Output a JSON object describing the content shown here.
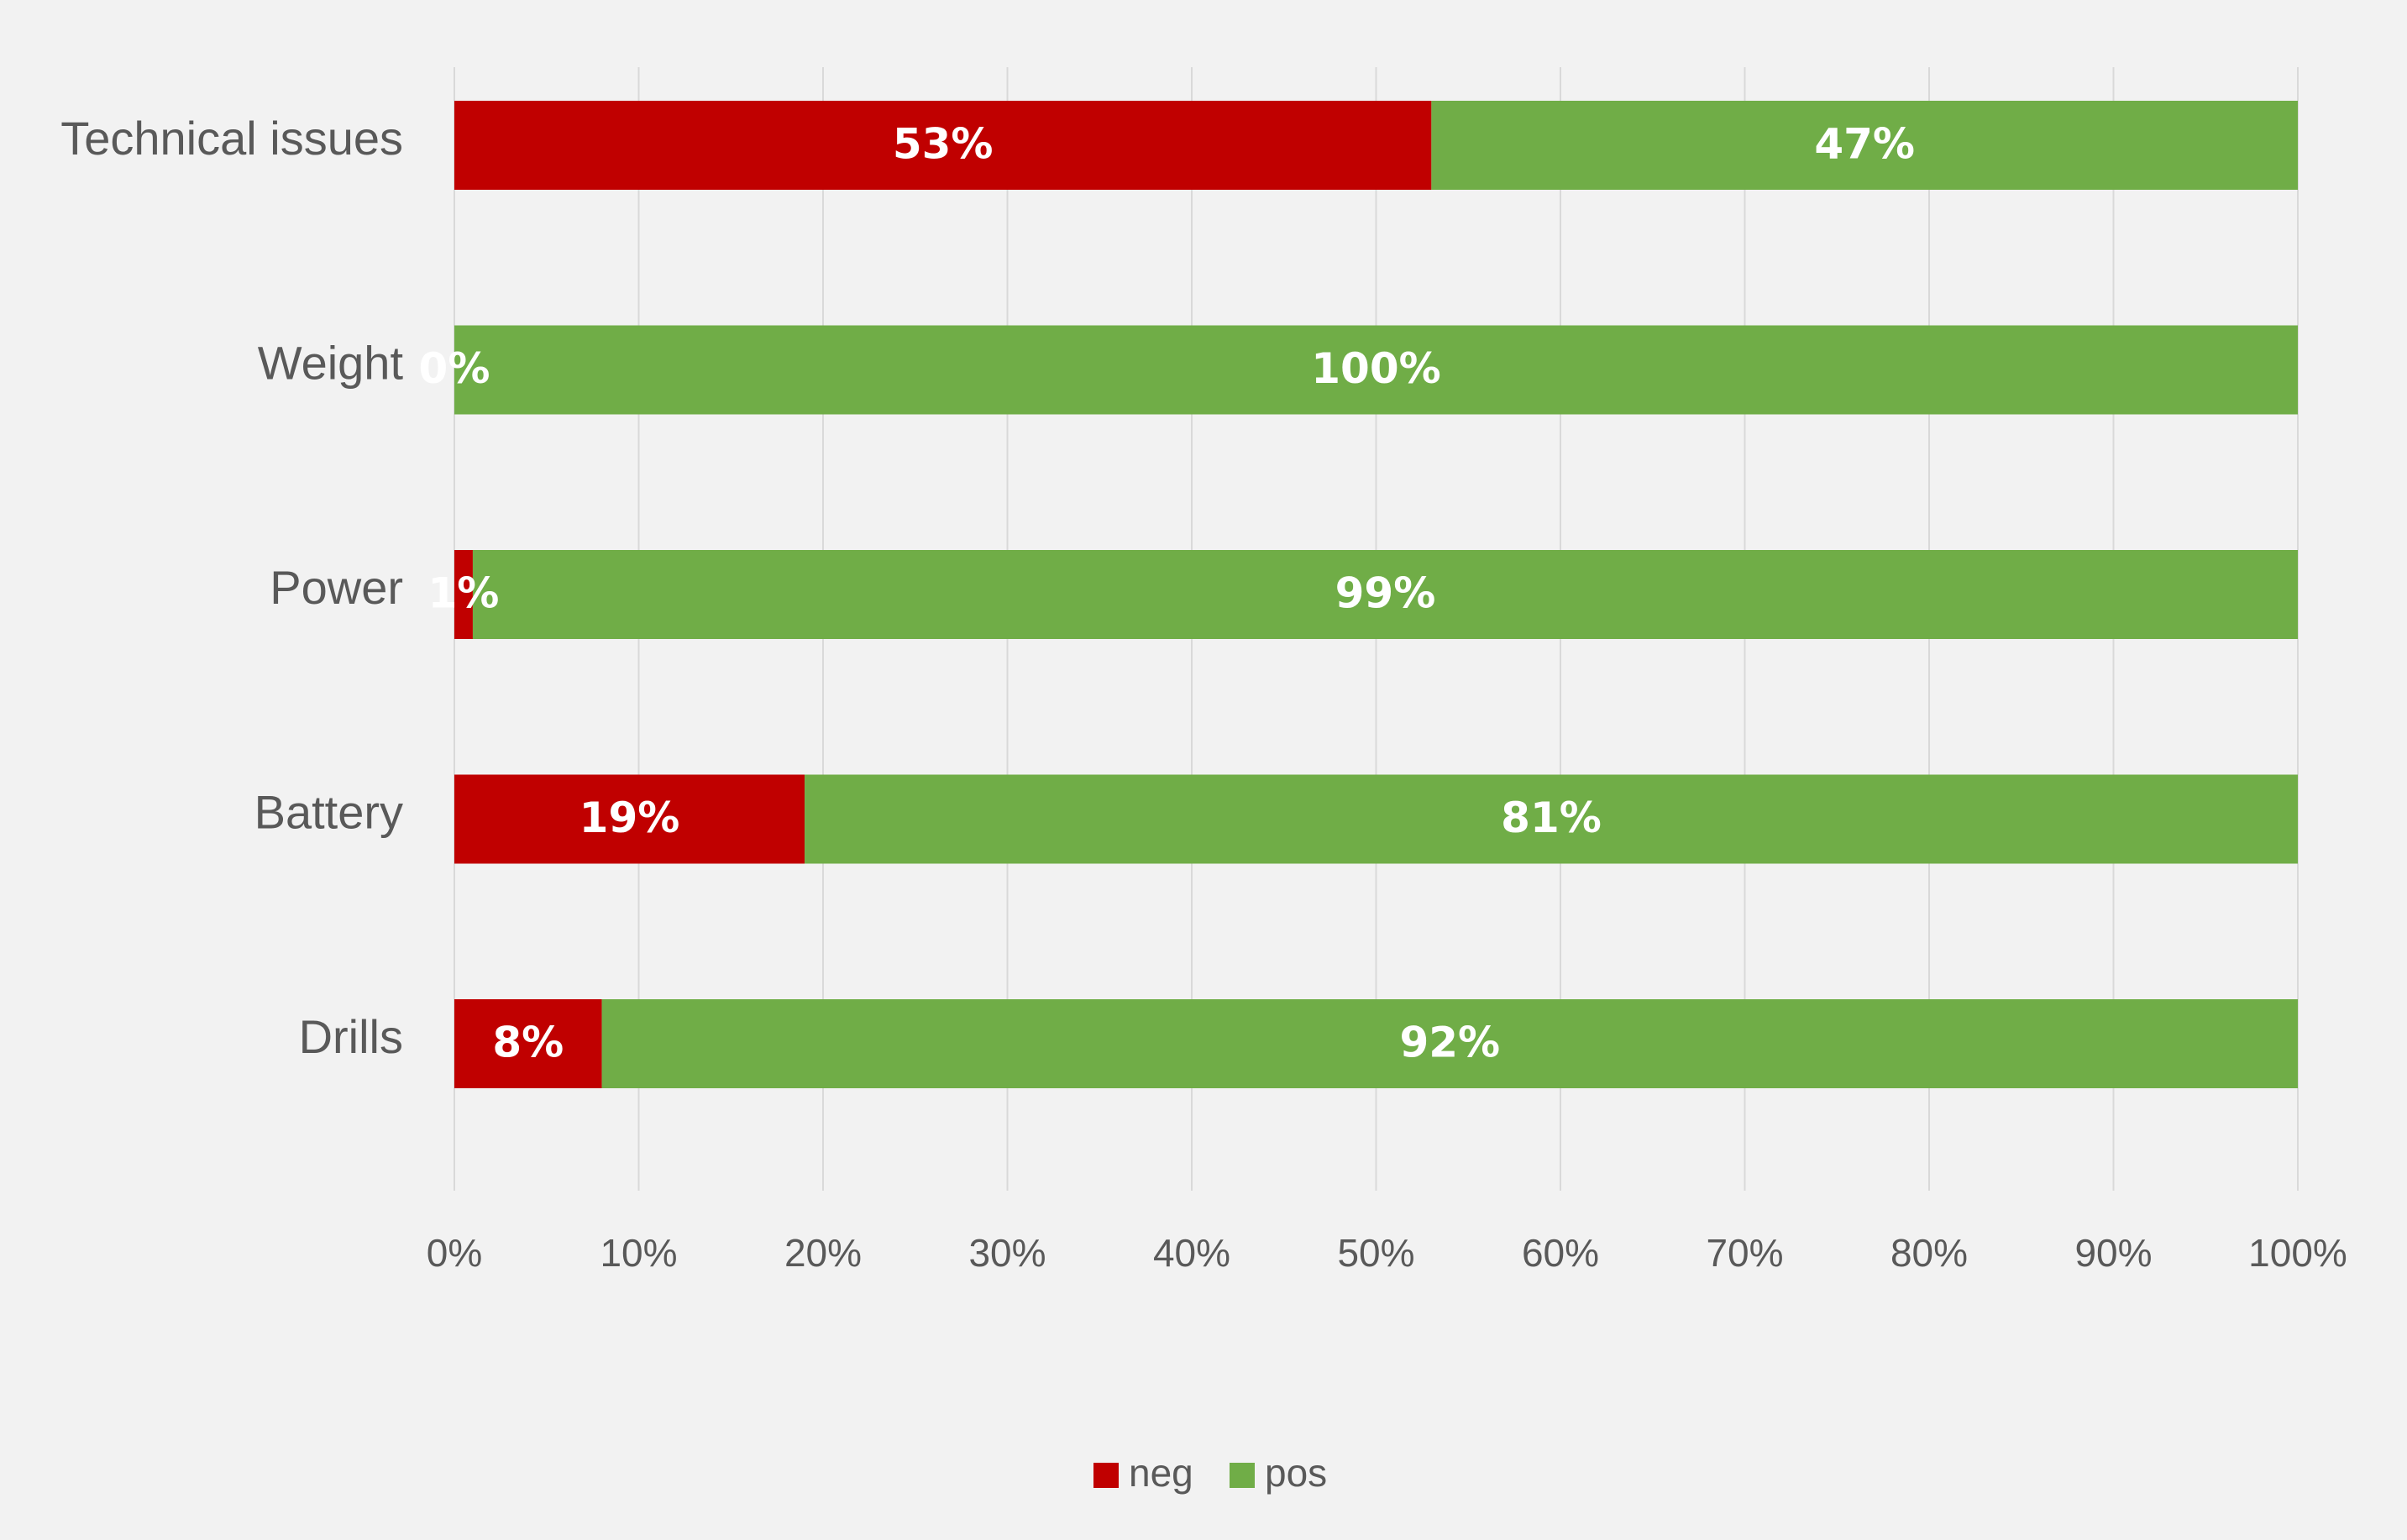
{
  "chart_data": {
    "type": "bar",
    "orientation": "horizontal",
    "stacked": "percent",
    "title": "",
    "xlabel": "",
    "ylabel": "",
    "categories": [
      "Technical issues",
      "Weight",
      "Power",
      "Battery",
      "Drills"
    ],
    "series": [
      {
        "name": "neg",
        "color": "#c00000",
        "values": [
          53,
          0,
          1,
          19,
          8
        ],
        "labels": [
          "53%",
          "0%",
          "1%",
          "19%",
          "8%"
        ]
      },
      {
        "name": "pos",
        "color": "#70ad47",
        "values": [
          47,
          100,
          99,
          81,
          92
        ],
        "labels": [
          "47%",
          "100%",
          "99%",
          "81%",
          "92%"
        ]
      }
    ],
    "xlim": [
      0,
      100
    ],
    "x_ticks": [
      0,
      10,
      20,
      30,
      40,
      50,
      60,
      70,
      80,
      90,
      100
    ],
    "x_tick_labels": [
      "0%",
      "10%",
      "20%",
      "30%",
      "40%",
      "50%",
      "60%",
      "70%",
      "80%",
      "90%",
      "100%"
    ],
    "grid": true,
    "gridline_color": "#d9d9d9",
    "background_color": "#f2f2f2",
    "text_color": "#595959",
    "data_label_color": "#ffffff",
    "legend": {
      "position": "bottom",
      "entries": [
        "neg",
        "pos"
      ]
    }
  }
}
